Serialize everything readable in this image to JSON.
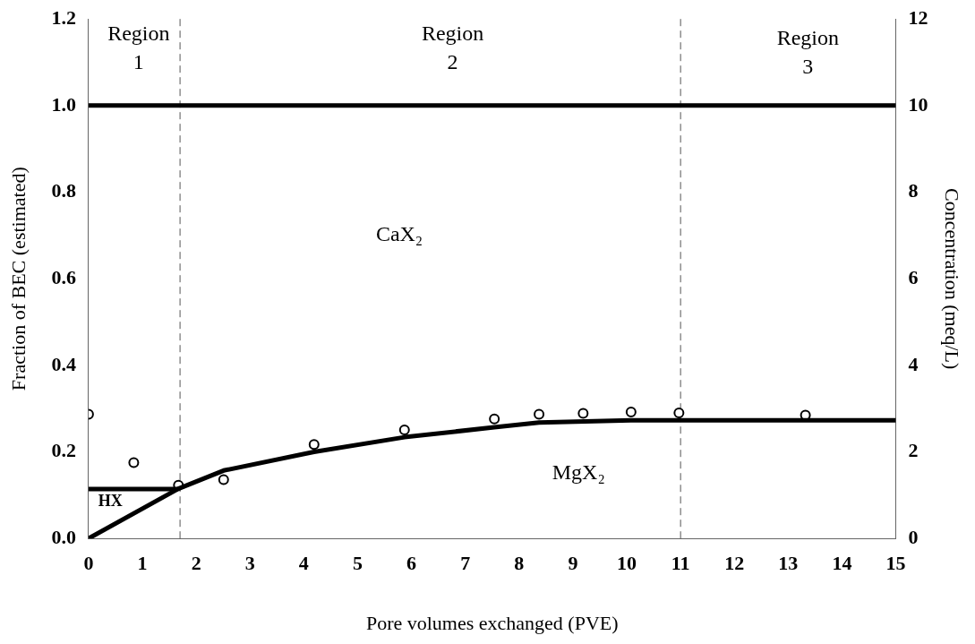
{
  "chart_data": {
    "type": "line",
    "xlabel": "Pore volumes exchanged (PVE)",
    "ylabel": "Fraction of BEC (estimated)",
    "y2label": "Concentration (meq/L)",
    "xlim": [
      0,
      15
    ],
    "xticks": [
      0,
      1,
      2,
      3,
      4,
      5,
      6,
      7,
      8,
      9,
      10,
      11,
      12,
      13,
      14,
      15
    ],
    "ylim": [
      0,
      1.2
    ],
    "yticks": [
      {
        "value": 0,
        "label": "0.0"
      },
      {
        "value": 0.2,
        "label": "0.2"
      },
      {
        "value": 0.4,
        "label": "0.4"
      },
      {
        "value": 0.6,
        "label": "0.6"
      },
      {
        "value": 0.8,
        "label": "0.8"
      },
      {
        "value": 1,
        "label": "1.0"
      },
      {
        "value": 1.2,
        "label": "1.2"
      }
    ],
    "y2lim": [
      0,
      12
    ],
    "y2ticks": [
      0,
      2,
      4,
      6,
      8,
      10,
      12
    ],
    "grid": false,
    "legend": false,
    "line_style": "solid",
    "series": [
      {
        "color": "#000000",
        "x": [
          0,
          15
        ],
        "values": [
          1,
          1
        ]
      },
      {
        "color": "#000000",
        "x": [
          0,
          1.67
        ],
        "values": [
          0.114,
          0.114
        ]
      },
      {
        "color": "#000000",
        "x": [
          0,
          1.67,
          2.51,
          4.19,
          5.87,
          7.54,
          8.37,
          10.08,
          15
        ],
        "values": [
          0,
          0.115,
          0.157,
          0.2,
          0.234,
          0.257,
          0.268,
          0.273,
          0.273
        ]
      },
      {
        "type": "scatter",
        "axis": "y2",
        "marker": "circle",
        "color": "#000000",
        "x": [
          0,
          0.84,
          1.67,
          2.51,
          4.19,
          5.87,
          7.54,
          8.37,
          9.19,
          10.08,
          10.97,
          13.32
        ],
        "values": [
          2.87,
          1.75,
          1.23,
          1.36,
          2.17,
          2.51,
          2.76,
          2.87,
          2.89,
          2.92,
          2.9,
          2.85
        ]
      }
    ],
    "ref_lines": [
      {
        "axis": "x",
        "value": 1.7,
        "line_style": "dashed",
        "color": "#555555"
      },
      {
        "axis": "x",
        "value": 11,
        "line_style": "dashed",
        "color": "#555555"
      }
    ],
    "annotations": [
      "Region 1",
      "Region 2",
      "Region 3",
      "CaX₂",
      "MgX₂",
      "HX"
    ]
  }
}
